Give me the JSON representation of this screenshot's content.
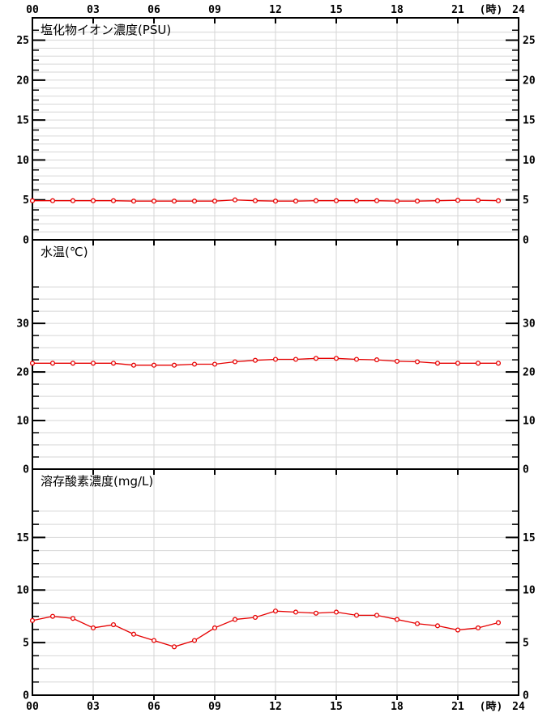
{
  "figure_title": "water-quality-daily-charts",
  "colors": {
    "series": "#e60000",
    "marker_fill": "#ffffff",
    "grid": "#d6d6d6",
    "axis": "#000000",
    "text": "#000000",
    "background": "#ffffff"
  },
  "x_axis": {
    "unit_label": "(時)",
    "tick_labels": [
      "00",
      "03",
      "06",
      "09",
      "12",
      "15",
      "18",
      "21",
      "24"
    ],
    "tick_hours": [
      0,
      3,
      6,
      9,
      12,
      15,
      18,
      21,
      24
    ],
    "gridline_hours": [
      3,
      6,
      9,
      12,
      15,
      18,
      21
    ],
    "range": [
      0,
      24
    ],
    "labels_on_top": true,
    "labels_on_bottom": true
  },
  "chart_data": [
    {
      "type": "line",
      "id": "chloride",
      "title": "塩化物イオン濃度(PSU)",
      "x": [
        0,
        1,
        2,
        3,
        4,
        5,
        6,
        7,
        8,
        9,
        10,
        11,
        12,
        13,
        14,
        15,
        16,
        17,
        18,
        19,
        20,
        21,
        22,
        23
      ],
      "values": [
        4.9,
        4.9,
        4.9,
        4.9,
        4.9,
        4.85,
        4.85,
        4.85,
        4.85,
        4.85,
        5.0,
        4.9,
        4.85,
        4.85,
        4.9,
        4.9,
        4.9,
        4.9,
        4.85,
        4.85,
        4.9,
        4.95,
        4.95,
        4.9
      ],
      "ylim": [
        0,
        27.8
      ],
      "y_label_values": [
        0,
        5,
        10,
        15,
        20,
        25
      ],
      "minor_tick_step": 1.25,
      "tick_max": 26.25,
      "grid_step": 1.0,
      "grid_max": 26,
      "grid": true,
      "legend": "none"
    },
    {
      "type": "line",
      "id": "water-temperature",
      "title": "水温(℃)",
      "x": [
        0,
        1,
        2,
        3,
        4,
        5,
        6,
        7,
        8,
        9,
        10,
        11,
        12,
        13,
        14,
        15,
        16,
        17,
        18,
        19,
        20,
        21,
        22,
        23
      ],
      "values": [
        21.8,
        21.8,
        21.8,
        21.8,
        21.8,
        21.4,
        21.4,
        21.4,
        21.6,
        21.6,
        22.1,
        22.4,
        22.6,
        22.6,
        22.8,
        22.8,
        22.6,
        22.5,
        22.2,
        22.1,
        21.8,
        21.8,
        21.8,
        21.8
      ],
      "ylim": [
        0,
        47.2
      ],
      "y_label_values": [
        0,
        10,
        20,
        30
      ],
      "minor_tick_step": 2.5,
      "tick_max": 37.5,
      "grid_step": 2.5,
      "grid_max": 37.5,
      "grid": true,
      "legend": "none"
    },
    {
      "type": "line",
      "id": "dissolved-oxygen",
      "title": "溶存酸素濃度(mg/L)",
      "x": [
        0,
        1,
        2,
        3,
        4,
        5,
        6,
        7,
        8,
        9,
        10,
        11,
        12,
        13,
        14,
        15,
        16,
        17,
        18,
        19,
        20,
        21,
        22,
        23
      ],
      "values": [
        7.1,
        7.5,
        7.3,
        6.4,
        6.7,
        5.8,
        5.2,
        4.6,
        5.2,
        6.4,
        7.2,
        7.4,
        8.0,
        7.9,
        7.8,
        7.9,
        7.6,
        7.6,
        7.2,
        6.8,
        6.6,
        6.2,
        6.4,
        6.9
      ],
      "ylim": [
        0,
        21.5
      ],
      "y_label_values": [
        0,
        5,
        10,
        15
      ],
      "minor_tick_step": 1.25,
      "tick_max": 17.5,
      "grid_step": 1.25,
      "grid_max": 17.5,
      "grid": true,
      "legend": "none"
    }
  ]
}
